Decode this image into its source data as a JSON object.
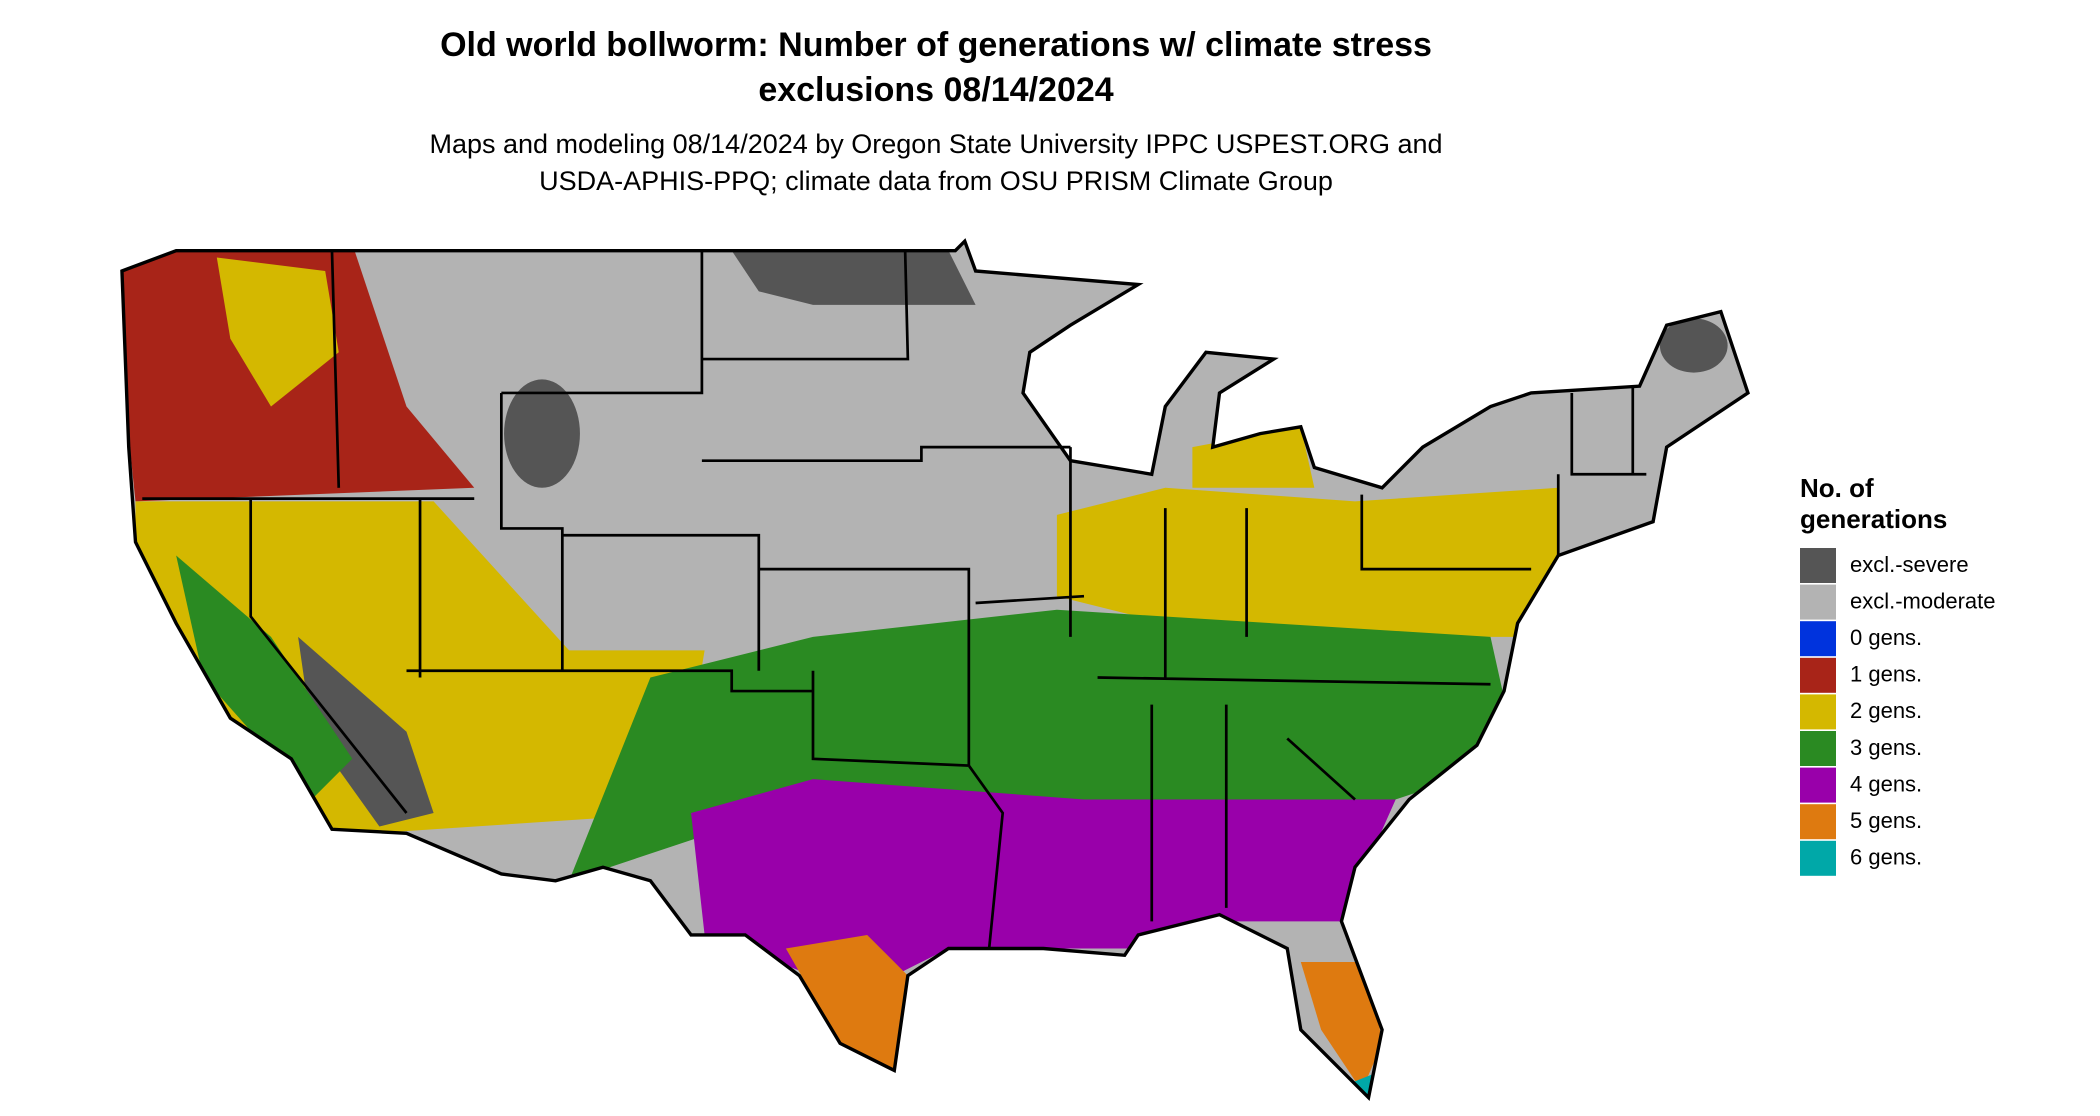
{
  "title_lines": [
    "Old world bollworm: Number of generations w/ climate stress",
    "exclusions 08/14/2024"
  ],
  "subtitle_lines": [
    "Maps and modeling 08/14/2024 by Oregon State University IPPC USPEST.ORG and",
    "USDA-APHIS-PPQ; climate data from OSU PRISM Climate Group"
  ],
  "legend": {
    "title_lines": [
      "No. of",
      "generations"
    ],
    "items": [
      {
        "label": "excl.-severe",
        "color": "#555555"
      },
      {
        "label": "excl.-moderate",
        "color": "#b3b3b3"
      },
      {
        "label": "0 gens.",
        "color": "#0033dd"
      },
      {
        "label": "1 gens.",
        "color": "#a82418"
      },
      {
        "label": "2 gens.",
        "color": "#d4b800"
      },
      {
        "label": "3 gens.",
        "color": "#2a8a22"
      },
      {
        "label": "4 gens.",
        "color": "#9900aa"
      },
      {
        "label": "5 gens.",
        "color": "#de7a10"
      },
      {
        "label": "6 gens.",
        "color": "#00a8a8"
      }
    ]
  }
}
